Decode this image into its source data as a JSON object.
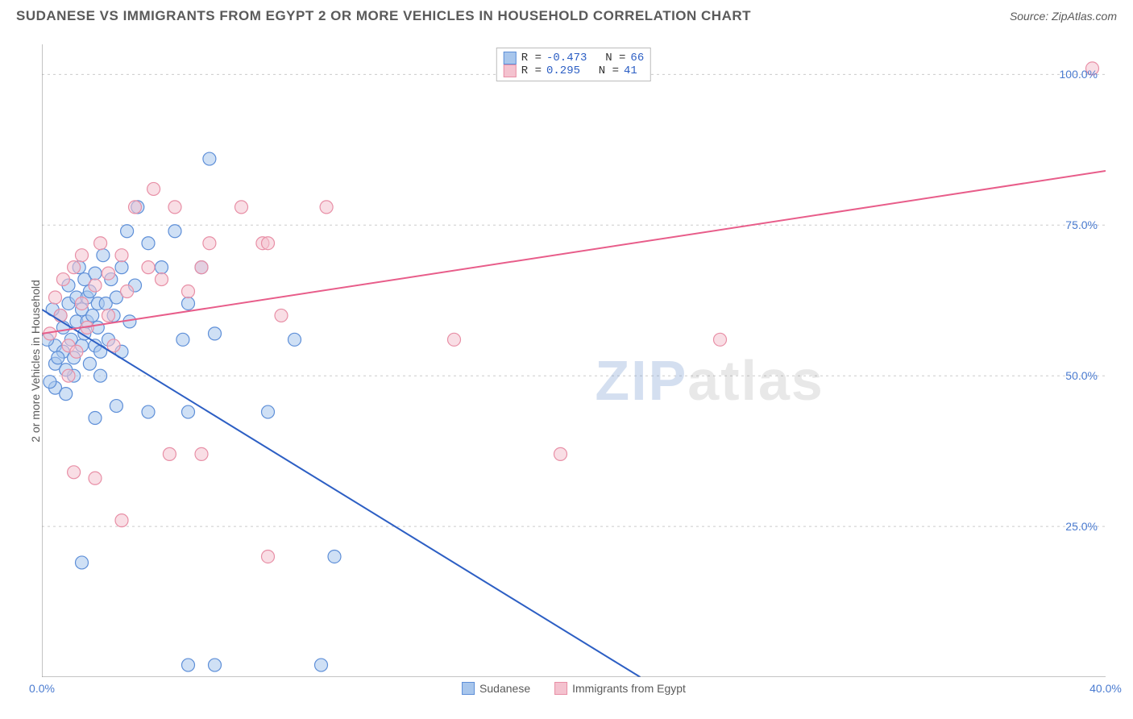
{
  "header": {
    "title": "SUDANESE VS IMMIGRANTS FROM EGYPT 2 OR MORE VEHICLES IN HOUSEHOLD CORRELATION CHART",
    "source": "Source: ZipAtlas.com"
  },
  "chart": {
    "type": "scatter",
    "ylabel": "2 or more Vehicles in Household",
    "xlim": [
      0,
      40
    ],
    "ylim": [
      0,
      105
    ],
    "xtick_labels": [
      "0.0%",
      "40.0%"
    ],
    "xtick_positions": [
      0,
      40
    ],
    "ytick_labels": [
      "25.0%",
      "50.0%",
      "75.0%",
      "100.0%"
    ],
    "ytick_positions": [
      25,
      50,
      75,
      100
    ],
    "grid_dashed_y": [
      25,
      50,
      75,
      100
    ],
    "background_color": "#ffffff",
    "grid_color": "#cccccc",
    "axis_color": "#888888",
    "watermark": "ZIPatlas",
    "series": [
      {
        "name": "Sudanese",
        "fill": "#a8c6ec",
        "stroke": "#5e8fd8",
        "marker_radius": 8,
        "trend_color": "#2d5fc4",
        "trend_width": 2,
        "trend": {
          "x1": 0,
          "y1": 61,
          "x2": 22.5,
          "y2": 0
        },
        "trend_dashed_continuation": {
          "x1": 19,
          "y1": 9.5,
          "x2": 24,
          "y2": -4
        },
        "R": "-0.473",
        "N": "66",
        "points": [
          [
            0.5,
            48
          ],
          [
            0.5,
            52
          ],
          [
            0.5,
            55
          ],
          [
            0.7,
            60
          ],
          [
            0.8,
            58
          ],
          [
            0.8,
            54
          ],
          [
            0.9,
            47
          ],
          [
            1.0,
            62
          ],
          [
            1.0,
            65
          ],
          [
            1.1,
            56
          ],
          [
            1.2,
            50
          ],
          [
            1.2,
            53
          ],
          [
            1.3,
            59
          ],
          [
            1.3,
            63
          ],
          [
            1.4,
            68
          ],
          [
            1.5,
            61
          ],
          [
            1.5,
            55
          ],
          [
            1.6,
            66
          ],
          [
            1.6,
            57
          ],
          [
            1.7,
            63
          ],
          [
            1.7,
            59
          ],
          [
            1.8,
            52
          ],
          [
            1.8,
            64
          ],
          [
            1.9,
            60
          ],
          [
            2.0,
            55
          ],
          [
            2.0,
            67
          ],
          [
            2.1,
            62
          ],
          [
            2.1,
            58
          ],
          [
            2.2,
            54
          ],
          [
            2.2,
            50
          ],
          [
            2.3,
            70
          ],
          [
            2.4,
            62
          ],
          [
            2.5,
            56
          ],
          [
            2.6,
            66
          ],
          [
            2.7,
            60
          ],
          [
            2.8,
            63
          ],
          [
            3.0,
            68
          ],
          [
            3.0,
            54
          ],
          [
            3.2,
            74
          ],
          [
            3.3,
            59
          ],
          [
            3.5,
            65
          ],
          [
            3.6,
            78
          ],
          [
            4.0,
            72
          ],
          [
            4.5,
            68
          ],
          [
            5.0,
            74
          ],
          [
            5.3,
            56
          ],
          [
            5.5,
            62
          ],
          [
            6.0,
            68
          ],
          [
            6.3,
            86
          ],
          [
            6.5,
            57
          ],
          [
            1.5,
            19
          ],
          [
            2.0,
            43
          ],
          [
            2.8,
            45
          ],
          [
            4.0,
            44
          ],
          [
            5.5,
            44
          ],
          [
            6.5,
            2
          ],
          [
            8.5,
            44
          ],
          [
            10.5,
            2
          ],
          [
            11.0,
            20
          ],
          [
            9.5,
            56
          ],
          [
            5.5,
            2
          ],
          [
            0.3,
            49
          ],
          [
            0.2,
            56
          ],
          [
            0.4,
            61
          ],
          [
            0.6,
            53
          ],
          [
            0.9,
            51
          ]
        ]
      },
      {
        "name": "Immigrants from Egypt",
        "fill": "#f4c2cf",
        "stroke": "#e88fa6",
        "marker_radius": 8,
        "trend_color": "#e85d8a",
        "trend_width": 2,
        "trend": {
          "x1": 0,
          "y1": 57,
          "x2": 40,
          "y2": 84
        },
        "R": "0.295",
        "N": "41",
        "points": [
          [
            0.3,
            57
          ],
          [
            0.5,
            63
          ],
          [
            0.7,
            60
          ],
          [
            0.8,
            66
          ],
          [
            1.0,
            55
          ],
          [
            1.0,
            50
          ],
          [
            1.2,
            68
          ],
          [
            1.3,
            54
          ],
          [
            1.5,
            62
          ],
          [
            1.5,
            70
          ],
          [
            1.7,
            58
          ],
          [
            2.0,
            65
          ],
          [
            2.2,
            72
          ],
          [
            2.5,
            60
          ],
          [
            2.5,
            67
          ],
          [
            2.7,
            55
          ],
          [
            3.0,
            70
          ],
          [
            3.2,
            64
          ],
          [
            3.5,
            78
          ],
          [
            4.0,
            68
          ],
          [
            4.2,
            81
          ],
          [
            4.5,
            66
          ],
          [
            5.0,
            78
          ],
          [
            5.5,
            64
          ],
          [
            6.0,
            68
          ],
          [
            6.3,
            72
          ],
          [
            7.5,
            78
          ],
          [
            8.3,
            72
          ],
          [
            8.5,
            72
          ],
          [
            10.7,
            78
          ],
          [
            9.0,
            60
          ],
          [
            1.2,
            34
          ],
          [
            2.0,
            33
          ],
          [
            3.0,
            26
          ],
          [
            4.8,
            37
          ],
          [
            6.0,
            37
          ],
          [
            8.5,
            20
          ],
          [
            15.5,
            56
          ],
          [
            19.5,
            37
          ],
          [
            25.5,
            56
          ],
          [
            39.5,
            101
          ]
        ]
      }
    ],
    "legend_bottom": [
      {
        "label": "Sudanese",
        "swatch_fill": "#a8c6ec",
        "swatch_stroke": "#5e8fd8"
      },
      {
        "label": "Immigrants from Egypt",
        "swatch_fill": "#f4c2cf",
        "swatch_stroke": "#e88fa6"
      }
    ]
  }
}
